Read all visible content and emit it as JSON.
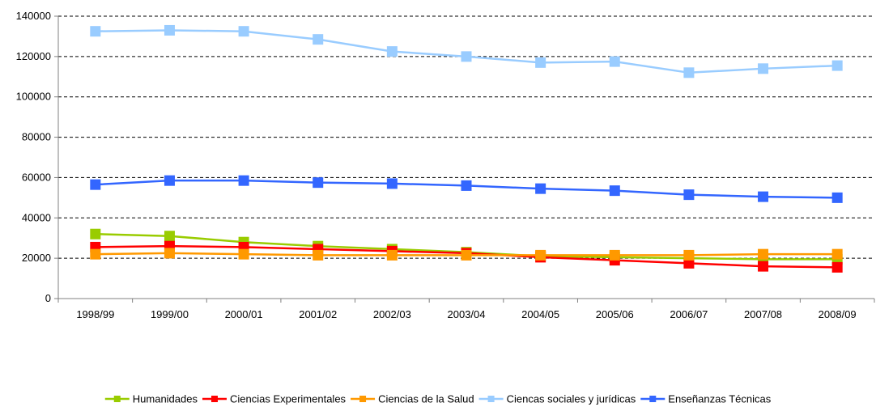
{
  "chart_data": {
    "type": "line",
    "categories": [
      "1998/99",
      "1999/00",
      "2000/01",
      "2001/02",
      "2002/03",
      "2003/04",
      "2004/05",
      "2005/06",
      "2006/07",
      "2007/08",
      "2008/09"
    ],
    "ylim": [
      0,
      140000
    ],
    "yticks": [
      0,
      20000,
      40000,
      60000,
      80000,
      100000,
      120000,
      140000
    ],
    "ytick_labels": [
      "0",
      "20000",
      "40000",
      "60000",
      "80000",
      "100000",
      "120000",
      "140000"
    ],
    "grid": "horizontal-dashed",
    "legend_position": "bottom",
    "series": [
      {
        "name": "Humanidades",
        "color": "#99CC00",
        "values": [
          32000,
          31000,
          28000,
          26000,
          24500,
          23000,
          21000,
          20500,
          20000,
          19500,
          19500
        ]
      },
      {
        "name": "Ciencias Experimentales",
        "color": "#FF0000",
        "values": [
          25500,
          26000,
          25500,
          24500,
          23500,
          22500,
          20500,
          19000,
          17500,
          16000,
          15500
        ]
      },
      {
        "name": "Ciencias de la Salud",
        "color": "#FF9900",
        "values": [
          22000,
          22500,
          22000,
          21500,
          21500,
          21500,
          21500,
          21500,
          21500,
          22000,
          22000
        ]
      },
      {
        "name": "Ciencas sociales y jurídicas",
        "color": "#99CCFF",
        "values": [
          132500,
          133000,
          132500,
          128500,
          122500,
          120000,
          117000,
          117500,
          112000,
          114000,
          115500
        ]
      },
      {
        "name": "Enseñanzas Técnicas",
        "color": "#3366FF",
        "values": [
          56500,
          58500,
          58500,
          57500,
          57000,
          56000,
          54500,
          53500,
          51500,
          50500,
          50000
        ]
      }
    ]
  }
}
